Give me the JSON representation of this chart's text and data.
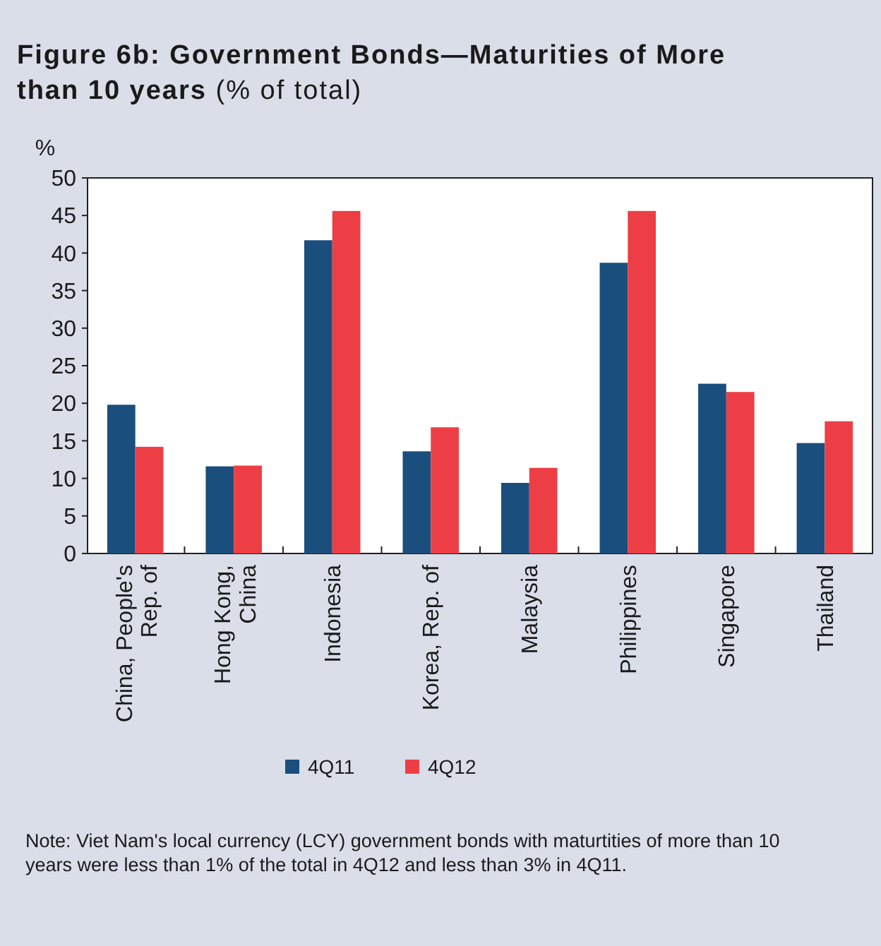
{
  "chart_data": {
    "type": "bar",
    "title": "Figure 6b: Government Bonds—Maturities of More than 10 years",
    "subtitle": "(% of total)",
    "ylabel": "%",
    "categories": [
      "China, People's Rep. of",
      "Hong Kong, China",
      "Indonesia",
      "Korea, Rep. of",
      "Malaysia",
      "Philippines",
      "Singapore",
      "Thailand"
    ],
    "series": [
      {
        "name": "4Q11",
        "color": "#1a4e7c",
        "values": [
          19.8,
          11.6,
          41.7,
          13.6,
          9.4,
          38.7,
          22.6,
          14.7
        ]
      },
      {
        "name": "4Q12",
        "color": "#ee3e45",
        "values": [
          14.2,
          11.7,
          45.6,
          16.8,
          11.4,
          45.6,
          21.5,
          17.6
        ]
      }
    ],
    "ylim": [
      0,
      50
    ],
    "yticks": [
      0,
      5,
      10,
      15,
      20,
      25,
      30,
      35,
      40,
      45,
      50
    ],
    "grid": false,
    "legend": "bottom",
    "annotations": [
      "Note: Viet Nam's local currency (LCY) government bonds with maturtities of more than 10 years were less than 1% of the total in 4Q12 and less than 3% in 4Q11."
    ]
  }
}
